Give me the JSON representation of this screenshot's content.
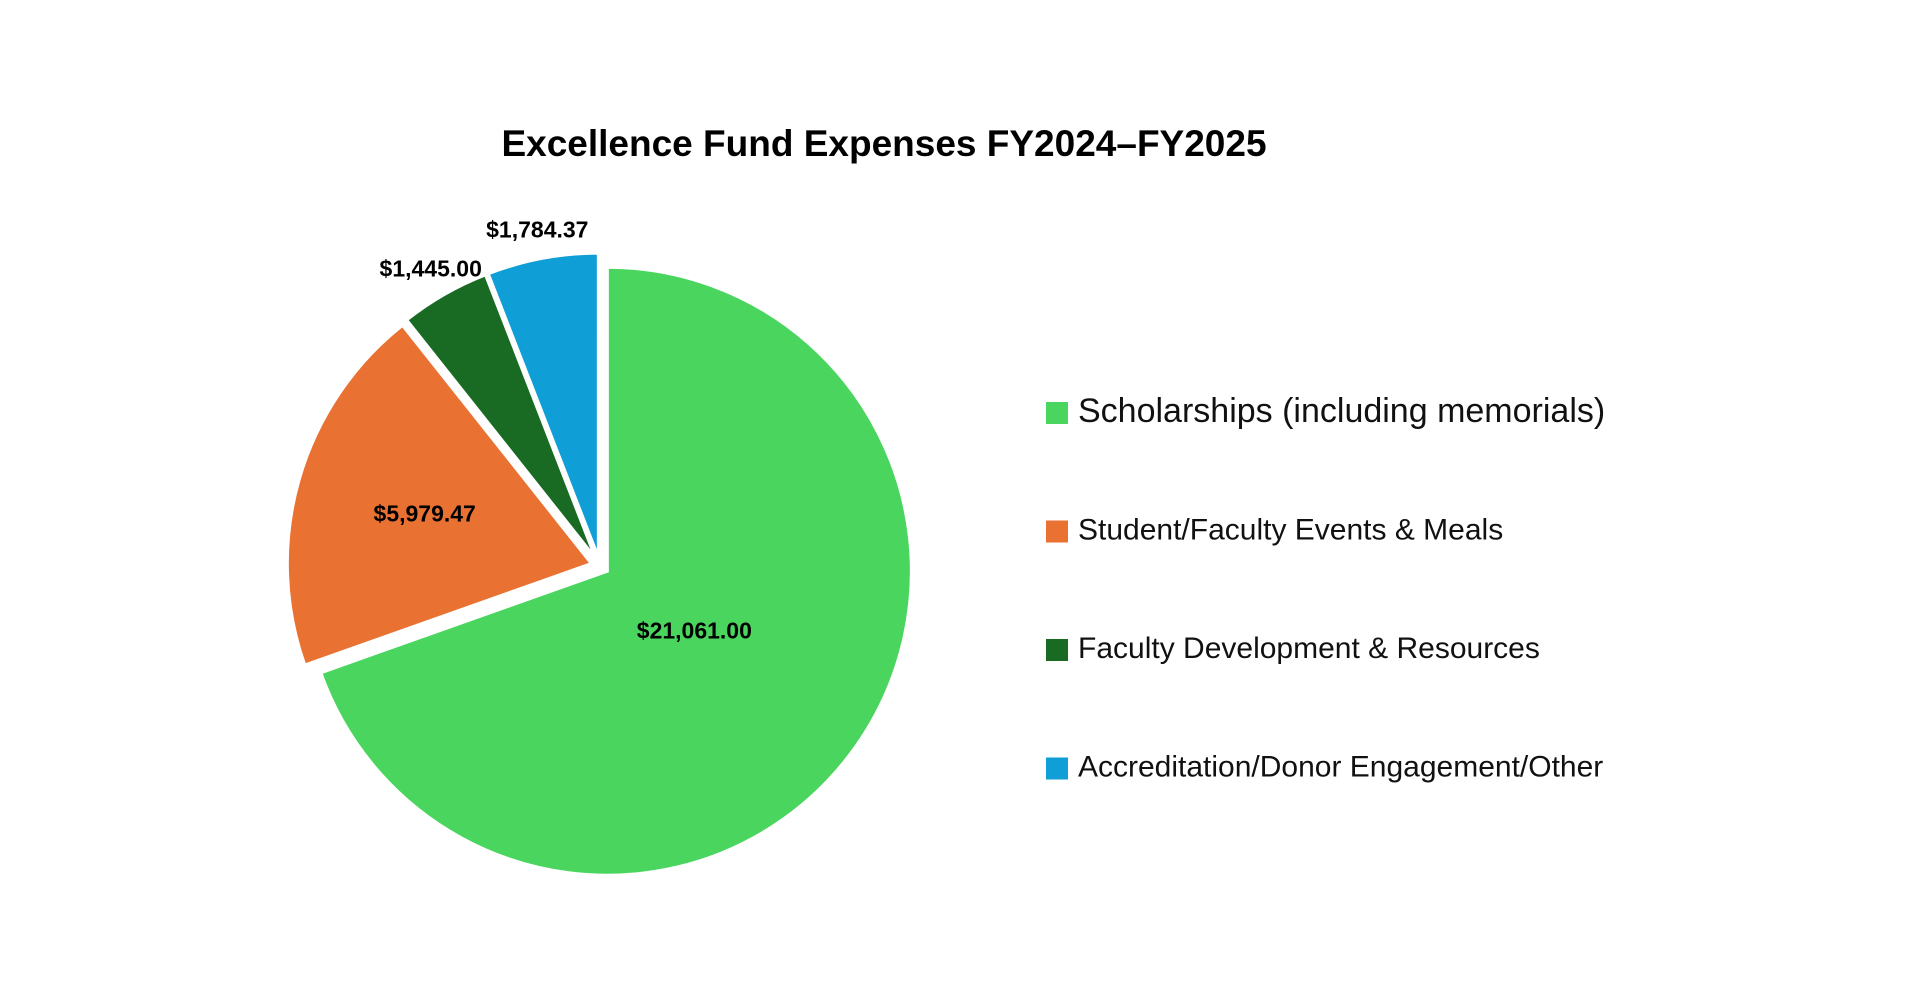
{
  "chart_data": {
    "type": "pie",
    "title": "Excellence Fund Expenses FY2024–FY2025",
    "categories": [
      "Scholarships (including memorials)",
      "Student/Faculty Events & Meals",
      "Faculty Development & Resources",
      "Accreditation/Donor Engagement/Other"
    ],
    "values": [
      21061,
      5979.47,
      1445,
      1784.37
    ],
    "value_labels": [
      "$21,061.00",
      "$5,979.47",
      "$1,445.00",
      "$1,784.37"
    ],
    "colors": [
      "#4ad65e",
      "#e97132",
      "#196b24",
      "#0f9ed5"
    ],
    "legend": "right"
  }
}
